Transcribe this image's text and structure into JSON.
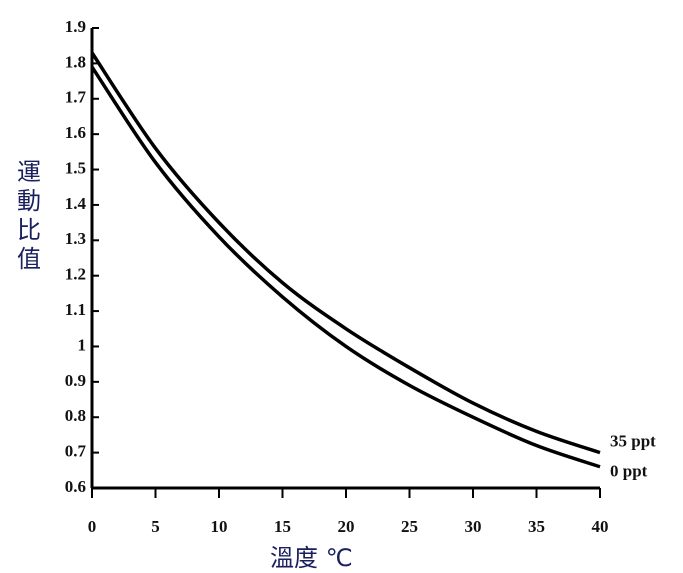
{
  "chart_data": {
    "type": "line",
    "y_label": "運動比值",
    "x_label": "溫度 ℃",
    "x": [
      0,
      5,
      10,
      15,
      20,
      25,
      30,
      35,
      40
    ],
    "series": [
      {
        "name": "35 ppt",
        "color": "#000000",
        "values": [
          1.83,
          1.56,
          1.35,
          1.18,
          1.05,
          0.94,
          0.84,
          0.76,
          0.7
        ]
      },
      {
        "name": "0 ppt",
        "color": "#000000",
        "values": [
          1.79,
          1.52,
          1.31,
          1.14,
          1.0,
          0.89,
          0.8,
          0.72,
          0.66
        ]
      }
    ],
    "xlim": [
      0,
      40
    ],
    "xticks": [
      0,
      5,
      10,
      15,
      20,
      25,
      30,
      35,
      40
    ],
    "ylim": [
      0.6,
      1.9
    ],
    "yticks": [
      0.6,
      0.7,
      0.8,
      0.9,
      1,
      1.1,
      1.2,
      1.3,
      1.4,
      1.5,
      1.6,
      1.7,
      1.8,
      1.9
    ]
  }
}
